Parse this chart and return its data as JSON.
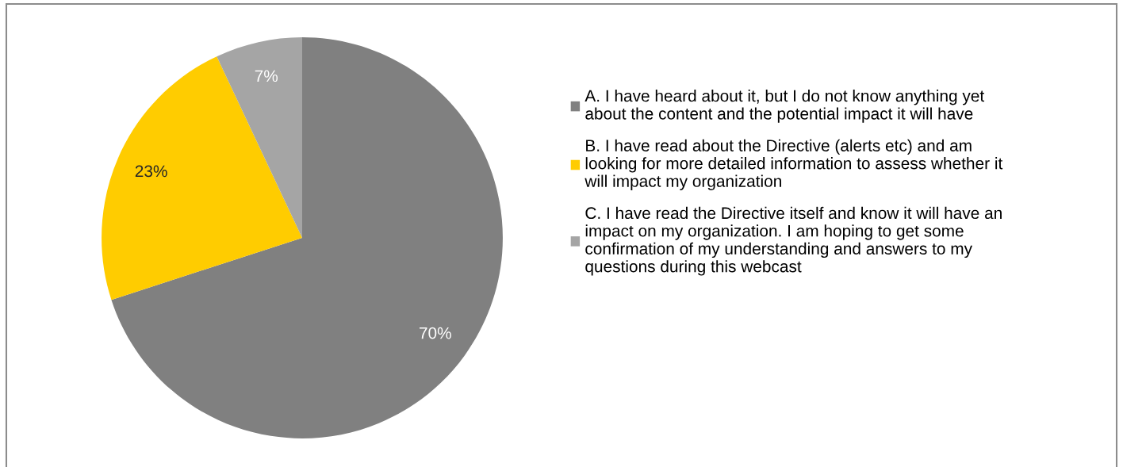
{
  "chart_data": {
    "type": "pie",
    "categories": [
      "A. I have heard about it, but I do not know anything yet\nabout the content and the potential impact it will have",
      "B. I have read about the Directive (alerts etc) and am\nlooking for more detailed information to assess whether it\nwill impact my organization",
      "C. I have read the Directive itself and know it will have an\nimpact on my organization. I am hoping to get some\nconfirmation of my understanding and answers to my\nquestions during this webcast"
    ],
    "values": [
      70,
      23,
      7
    ],
    "colors": [
      "#808080",
      "#ffcc00",
      "#a5a5a5"
    ],
    "value_labels": [
      "70%",
      "23%",
      "7%"
    ],
    "legend": "right"
  }
}
